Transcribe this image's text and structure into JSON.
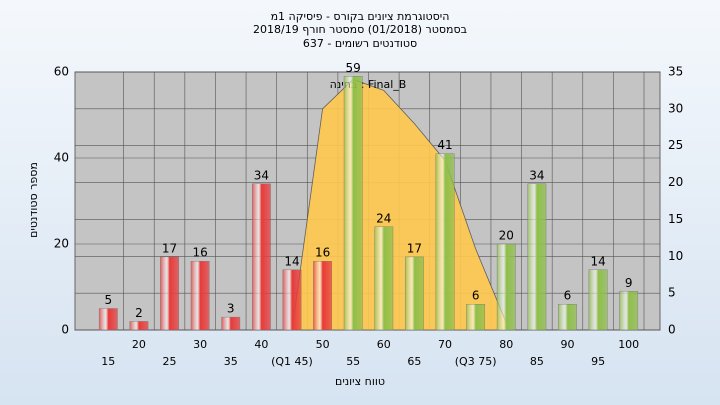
{
  "chart_data": {
    "type": "bar",
    "title": "היסטוגרמת ציונים בקורס - פיסיקה 1מ",
    "subtitle": "בסמסטר  (01/2018)  סמסטר חורף 2018/19",
    "subtitle2": "סטודנטים רשומים - 637",
    "y_label": "מספר סטודנטים",
    "x_label": "טווח ציונים",
    "annotation": "בחינה : Final_B",
    "categories": [
      "15",
      "20",
      "25",
      "30",
      "35",
      "40",
      "(Q1 45)",
      "50",
      "55",
      "60",
      "65",
      "70",
      "(Q3 75)",
      "80",
      "85",
      "90",
      "95",
      "100"
    ],
    "values": [
      5,
      2,
      17,
      16,
      3,
      34,
      14,
      16,
      59,
      24,
      17,
      41,
      6,
      20,
      34,
      6,
      14,
      9
    ],
    "bar_colors": [
      "#e83a3a",
      "#e83a3a",
      "#e83a3a",
      "#e83a3a",
      "#e83a3a",
      "#e83a3a",
      "#e83a3a",
      "#e83a3a",
      "#8fbf4a",
      "#8fbf4a",
      "#8fbf4a",
      "#8fbf4a",
      "#8fbf4a",
      "#8fbf4a",
      "#8fbf4a",
      "#8fbf4a",
      "#8fbf4a",
      "#8fbf4a"
    ],
    "area": {
      "values": [
        null,
        null,
        null,
        null,
        null,
        null,
        0,
        30,
        34,
        32.5,
        28,
        23,
        11,
        1,
        null,
        null,
        null,
        null
      ],
      "color": "#ffc94d",
      "axis": "y2"
    },
    "ylim": [
      0,
      60
    ],
    "yticks": [
      0,
      20,
      40,
      60
    ],
    "y2lim": [
      0,
      35
    ],
    "y2ticks": [
      0,
      5,
      10,
      15,
      20,
      25,
      30,
      35
    ],
    "grid": true
  }
}
